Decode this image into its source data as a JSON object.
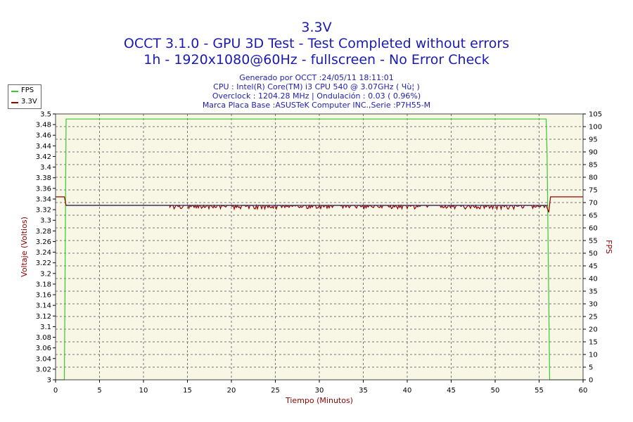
{
  "header": {
    "title": "3.3V",
    "subtitle1": "OCCT 3.1.0 - GPU 3D Test - Test Completed without errors",
    "subtitle2": "1h - 1920x1080@60Hz - fullscreen - No Error Check"
  },
  "info": {
    "line1": "Generado por OCCT :24/05/11 18:11:01",
    "line2": "CPU : Intel(R) Core(TM) i3 CPU 540 @ 3.07GHz ( Чù¦ )",
    "line3": "Overclock : 1204.28 MHz | Ondulación : 0.03 ( 0.96%)",
    "line4": "Marca Placa Base :ASUSTeK Computer INC.,Serie :P7H55-M"
  },
  "legend": [
    {
      "label": "FPS",
      "color": "#33cc33"
    },
    {
      "label": "3.3V",
      "color": "#990000"
    }
  ],
  "chart_data": {
    "type": "line",
    "xlabel": "Tiempo (Minutos)",
    "ylabel": "Voltaje (Voltios)",
    "y2label": "FPS",
    "xlim": [
      0,
      60
    ],
    "ylim": [
      3.0,
      3.5
    ],
    "y2lim": [
      0,
      105
    ],
    "x_ticks": [
      0,
      5,
      10,
      15,
      20,
      25,
      30,
      35,
      40,
      45,
      50,
      55,
      60
    ],
    "y_ticks": [
      "3.5",
      "3.48",
      "3.46",
      "3.44",
      "3.42",
      "3.4",
      "3.38",
      "3.36",
      "3.34",
      "3.32",
      "3.3",
      "3.28",
      "3.26",
      "3.24",
      "3.22",
      "3.2",
      "3.18",
      "3.16",
      "3.14",
      "3.12",
      "3.1",
      "3.08",
      "3.06",
      "3.04",
      "3.02",
      "3"
    ],
    "y2_ticks": [
      105,
      100,
      95,
      90,
      85,
      80,
      75,
      70,
      65,
      60,
      55,
      50,
      45,
      40,
      35,
      30,
      25,
      20,
      15,
      10,
      5,
      0
    ],
    "grid": true,
    "background": "#f8f6e4",
    "series": [
      {
        "name": "FPS",
        "axis": "right",
        "color": "#33cc33",
        "x": [
          0,
          1.0,
          1.2,
          1.3,
          55.8,
          55.9,
          56.2,
          60
        ],
        "values": [
          0,
          0,
          103,
          103,
          103,
          90,
          0,
          0
        ]
      },
      {
        "name": "3.3V",
        "axis": "left",
        "color": "#990000",
        "x": [
          0,
          1.0,
          1.2,
          13,
          55.8,
          56.1,
          56.3,
          60
        ],
        "values": [
          3.344,
          3.344,
          3.328,
          3.328,
          3.328,
          3.315,
          3.344,
          3.344
        ],
        "noise_range": [
          13,
          55.8
        ],
        "noise_min": 3.321,
        "noise_max": 3.328
      },
      {
        "name": "",
        "axis": "left",
        "color": "#2a2a6a",
        "x": [
          1.2,
          56.0
        ],
        "values": [
          3.328,
          3.328
        ]
      }
    ]
  }
}
